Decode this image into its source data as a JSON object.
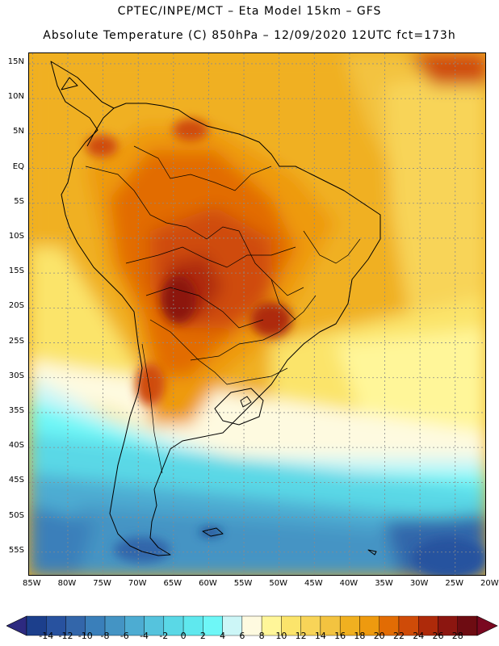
{
  "title": {
    "line1": "CPTEC/INPE/MCT –  Eta Model 15km – GFS",
    "line2": "Absolute Temperature (C) 850hPa – 12/09/2020 12UTC fct=173h"
  },
  "map": {
    "lat_labels": [
      "15N",
      "10N",
      "5N",
      "EQ",
      "5S",
      "10S",
      "15S",
      "20S",
      "25S",
      "30S",
      "35S",
      "40S",
      "45S",
      "50S",
      "55S"
    ],
    "lat_values": [
      15,
      10,
      5,
      0,
      -5,
      -10,
      -15,
      -20,
      -25,
      -30,
      -35,
      -40,
      -45,
      -50,
      -55
    ],
    "lon_labels": [
      "85W",
      "80W",
      "75W",
      "70W",
      "65W",
      "60W",
      "55W",
      "50W",
      "45W",
      "40W",
      "35W",
      "30W",
      "25W",
      "20W"
    ],
    "lon_values": [
      -85,
      -80,
      -75,
      -70,
      -65,
      -60,
      -55,
      -50,
      -45,
      -40,
      -35,
      -30,
      -25,
      -20
    ],
    "lat_range": [
      -58.5,
      16.5
    ],
    "lon_range": [
      -85.5,
      -20.5
    ]
  },
  "colorbar": {
    "labels": [
      "-14",
      "-12",
      "-10",
      "-8",
      "-6",
      "-4",
      "-2",
      "0",
      "2",
      "4",
      "6",
      "8",
      "10",
      "12",
      "14",
      "16",
      "18",
      "20",
      "22",
      "24",
      "26",
      "28"
    ],
    "colors": [
      "#1c3f8c",
      "#28529f",
      "#3366aa",
      "#3a7fba",
      "#4494c4",
      "#4dacd2",
      "#55c3dd",
      "#5ad8e6",
      "#5fe8ee",
      "#6ef7f7",
      "#ccf6f7",
      "#fefae0",
      "#fff699",
      "#fbe46b",
      "#f8d458",
      "#f3c340",
      "#f0b020",
      "#ee9a0f",
      "#e26c04",
      "#cf4b08",
      "#ae2a0a",
      "#8c1610",
      "#6e0c12"
    ],
    "under_color": "#2d2a80",
    "over_color": "#7a0820"
  }
}
